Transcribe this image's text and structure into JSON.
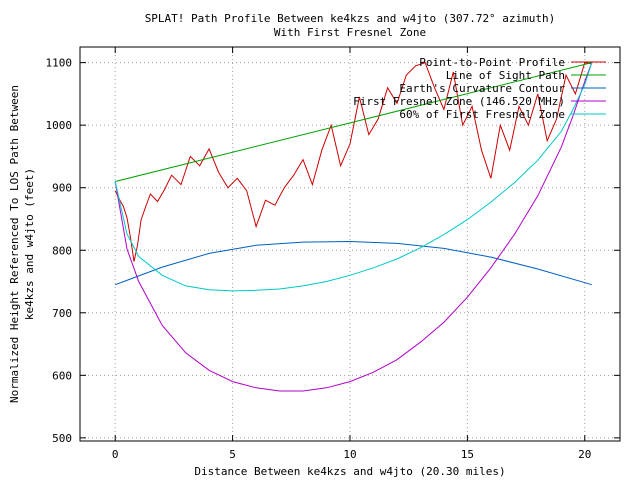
{
  "chart_data": {
    "type": "line",
    "title_line1": "SPLAT! Path Profile Between ke4kzs and w4jto (307.72° azimuth)",
    "title_line2": "With First Fresnel Zone",
    "xlabel": "Distance Between ke4kzs and w4jto (20.30 miles)",
    "ylabel_line1": "Normalized Height Referenced To LOS Path Between",
    "ylabel_line2": "ke4kzs and w4jto (feet)",
    "xlim": [
      -1.5,
      21.5
    ],
    "ylim": [
      495,
      1125
    ],
    "xticks": [
      0,
      5,
      10,
      15,
      20
    ],
    "yticks": [
      500,
      600,
      700,
      800,
      900,
      1000,
      1100
    ],
    "grid": true,
    "legend_position": "top-right",
    "series": [
      {
        "name": "Point-to-Point Profile",
        "color": "#cc0000",
        "x": [
          0,
          0.2,
          0.35,
          0.5,
          0.65,
          0.8,
          0.95,
          1.1,
          1.3,
          1.5,
          1.8,
          2.1,
          2.4,
          2.8,
          3.2,
          3.6,
          4.0,
          4.4,
          4.8,
          5.2,
          5.6,
          6.0,
          6.4,
          6.8,
          7.2,
          7.6,
          8.0,
          8.4,
          8.8,
          9.2,
          9.6,
          10.0,
          10.4,
          10.8,
          11.2,
          11.6,
          12.0,
          12.4,
          12.8,
          13.2,
          13.6,
          14.0,
          14.4,
          14.8,
          15.2,
          15.6,
          16.0,
          16.4,
          16.8,
          17.2,
          17.6,
          18.0,
          18.4,
          18.8,
          19.2,
          19.6,
          20.0,
          20.3
        ],
        "values": [
          895,
          880,
          870,
          852,
          820,
          782,
          808,
          848,
          870,
          890,
          878,
          897,
          920,
          905,
          950,
          935,
          962,
          925,
          900,
          915,
          895,
          838,
          880,
          872,
          900,
          920,
          945,
          905,
          960,
          1000,
          935,
          970,
          1045,
          985,
          1010,
          1060,
          1035,
          1080,
          1095,
          1100,
          1060,
          1025,
          1085,
          1000,
          1030,
          960,
          915,
          1000,
          960,
          1030,
          1000,
          1050,
          975,
          1010,
          1080,
          1050,
          1100,
          1098
        ]
      },
      {
        "name": "Line of Sight Path",
        "color": "#00a000",
        "x": [
          0,
          20.3
        ],
        "values": [
          910,
          1100
        ]
      },
      {
        "name": "Earth's Curvature Contour",
        "color": "#0060c0",
        "x": [
          0,
          2,
          4,
          6,
          8,
          10,
          12,
          14,
          16,
          18,
          20.3
        ],
        "values": [
          745,
          773,
          795,
          808,
          813,
          814,
          811,
          803,
          789,
          770,
          745
        ]
      },
      {
        "name": "First Fresnel Zone (146.520 MHz)",
        "color": "#b000c8",
        "x": [
          0,
          0.5,
          1,
          2,
          3,
          4,
          5,
          6,
          7,
          8,
          9,
          10,
          11,
          12,
          13,
          14,
          15,
          16,
          17,
          18,
          19,
          19.5,
          20,
          20.3
        ],
        "values": [
          910,
          802,
          750,
          680,
          636,
          608,
          590,
          580,
          575,
          575,
          580,
          590,
          605,
          625,
          653,
          685,
          725,
          772,
          825,
          887,
          965,
          1015,
          1070,
          1100
        ]
      },
      {
        "name": "60% of First Fresnel Zone",
        "color": "#00c8c8",
        "x": [
          0,
          0.5,
          1,
          2,
          3,
          4,
          5,
          6,
          7,
          8,
          9,
          10,
          11,
          12,
          13,
          14,
          15,
          16,
          17,
          18,
          19,
          19.5,
          20,
          20.3
        ],
        "values": [
          910,
          826,
          790,
          760,
          743,
          737,
          735,
          736,
          738,
          743,
          750,
          760,
          772,
          786,
          804,
          825,
          849,
          877,
          908,
          944,
          990,
          1025,
          1065,
          1100
        ]
      }
    ]
  },
  "colors": {
    "grid": "#a0a0a0",
    "axis": "#000000"
  }
}
